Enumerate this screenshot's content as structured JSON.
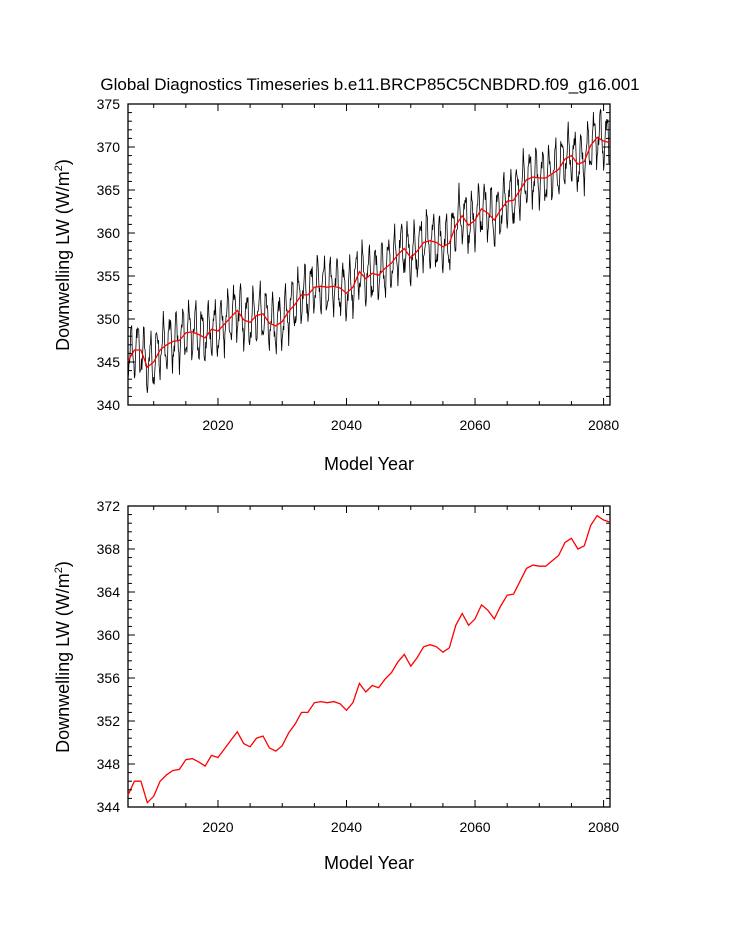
{
  "title": "Global Diagnostics Timeseries b.e11.BRCP85C5CNBDRD.f09_g16.001",
  "colors": {
    "monthly": "#000000",
    "annual": "#ff0000",
    "axes": "#000000",
    "background": "#ffffff"
  },
  "chart_data": [
    {
      "type": "line",
      "xlabel": "Model Year",
      "ylabel_main": "Downwelling LW (W/m",
      "ylabel_sup": "2",
      "ylabel_close": ")",
      "xlim": [
        2006,
        2081
      ],
      "ylim": [
        340,
        375
      ],
      "xticks": [
        2020,
        2040,
        2060,
        2080
      ],
      "xtick_labels": [
        "2020",
        "2040",
        "2060",
        "2080"
      ],
      "yticks": [
        340,
        345,
        350,
        355,
        360,
        365,
        370,
        375
      ],
      "ytick_labels": [
        "340",
        "345",
        "350",
        "355",
        "360",
        "365",
        "370",
        "375"
      ],
      "series": [
        {
          "name": "monthly",
          "color": "#000000",
          "seasonal_cycle": [
            -2.6,
            -2.0,
            -0.9,
            0.2,
            1.4,
            2.6,
            2.9,
            2.5,
            1.5,
            0.1,
            -1.4,
            -2.3
          ],
          "base": "annual"
        },
        {
          "name": "annual",
          "color": "#ff0000",
          "x": [
            2006,
            2007,
            2008,
            2009,
            2010,
            2011,
            2012,
            2013,
            2014,
            2015,
            2016,
            2017,
            2018,
            2019,
            2020,
            2021,
            2022,
            2023,
            2024,
            2025,
            2026,
            2027,
            2028,
            2029,
            2030,
            2031,
            2032,
            2033,
            2034,
            2035,
            2036,
            2037,
            2038,
            2039,
            2040,
            2041,
            2042,
            2043,
            2044,
            2045,
            2046,
            2047,
            2048,
            2049,
            2050,
            2051,
            2052,
            2053,
            2054,
            2055,
            2056,
            2057,
            2058,
            2059,
            2060,
            2061,
            2062,
            2063,
            2064,
            2065,
            2066,
            2067,
            2068,
            2069,
            2070,
            2071,
            2072,
            2073,
            2074,
            2075,
            2076,
            2077,
            2078,
            2079,
            2080,
            2081
          ],
          "values": [
            345.1,
            346.4,
            346.4,
            344.4,
            345.0,
            346.4,
            347.0,
            347.4,
            347.5,
            348.4,
            348.5,
            348.2,
            347.8,
            348.8,
            348.6,
            349.4,
            350.2,
            351.0,
            349.9,
            349.6,
            350.4,
            350.6,
            349.5,
            349.2,
            349.7,
            350.9,
            351.7,
            352.8,
            352.8,
            353.7,
            353.8,
            353.7,
            353.8,
            353.6,
            353.0,
            353.7,
            355.5,
            354.7,
            355.3,
            355.1,
            355.9,
            356.5,
            357.5,
            358.2,
            357.1,
            357.9,
            358.9,
            359.1,
            358.9,
            358.4,
            358.8,
            360.9,
            362.0,
            360.9,
            361.5,
            362.8,
            362.3,
            361.5,
            362.7,
            363.7,
            363.8,
            365.0,
            366.2,
            366.5,
            366.4,
            366.4,
            366.9,
            367.4,
            368.6,
            369.0,
            368.0,
            368.3,
            370.2,
            371.1,
            370.7,
            370.5
          ]
        }
      ]
    },
    {
      "type": "line",
      "xlabel": "Model Year",
      "ylabel_main": "Downwelling LW (W/m",
      "ylabel_sup": "2",
      "ylabel_close": ")",
      "xlim": [
        2006,
        2081
      ],
      "ylim": [
        344,
        372
      ],
      "xticks": [
        2020,
        2040,
        2060,
        2080
      ],
      "xtick_labels": [
        "2020",
        "2040",
        "2060",
        "2080"
      ],
      "yticks": [
        344,
        348,
        352,
        356,
        360,
        364,
        368,
        372
      ],
      "ytick_labels": [
        "344",
        "348",
        "352",
        "356",
        "360",
        "364",
        "368",
        "372"
      ],
      "series": [
        {
          "name": "annual",
          "color": "#ff0000",
          "x": [
            2006,
            2007,
            2008,
            2009,
            2010,
            2011,
            2012,
            2013,
            2014,
            2015,
            2016,
            2017,
            2018,
            2019,
            2020,
            2021,
            2022,
            2023,
            2024,
            2025,
            2026,
            2027,
            2028,
            2029,
            2030,
            2031,
            2032,
            2033,
            2034,
            2035,
            2036,
            2037,
            2038,
            2039,
            2040,
            2041,
            2042,
            2043,
            2044,
            2045,
            2046,
            2047,
            2048,
            2049,
            2050,
            2051,
            2052,
            2053,
            2054,
            2055,
            2056,
            2057,
            2058,
            2059,
            2060,
            2061,
            2062,
            2063,
            2064,
            2065,
            2066,
            2067,
            2068,
            2069,
            2070,
            2071,
            2072,
            2073,
            2074,
            2075,
            2076,
            2077,
            2078,
            2079,
            2080,
            2081
          ],
          "values": [
            345.1,
            346.4,
            346.4,
            344.4,
            345.0,
            346.4,
            347.0,
            347.4,
            347.5,
            348.4,
            348.5,
            348.2,
            347.8,
            348.8,
            348.6,
            349.4,
            350.2,
            351.0,
            349.9,
            349.6,
            350.4,
            350.6,
            349.5,
            349.2,
            349.7,
            350.9,
            351.7,
            352.8,
            352.8,
            353.7,
            353.8,
            353.7,
            353.8,
            353.6,
            353.0,
            353.7,
            355.5,
            354.7,
            355.3,
            355.1,
            355.9,
            356.5,
            357.5,
            358.2,
            357.1,
            357.9,
            358.9,
            359.1,
            358.9,
            358.4,
            358.8,
            360.9,
            362.0,
            360.9,
            361.5,
            362.8,
            362.3,
            361.5,
            362.7,
            363.7,
            363.8,
            365.0,
            366.2,
            366.5,
            366.4,
            366.4,
            366.9,
            367.4,
            368.6,
            369.0,
            368.0,
            368.3,
            370.2,
            371.1,
            370.7,
            370.5
          ]
        }
      ]
    }
  ]
}
